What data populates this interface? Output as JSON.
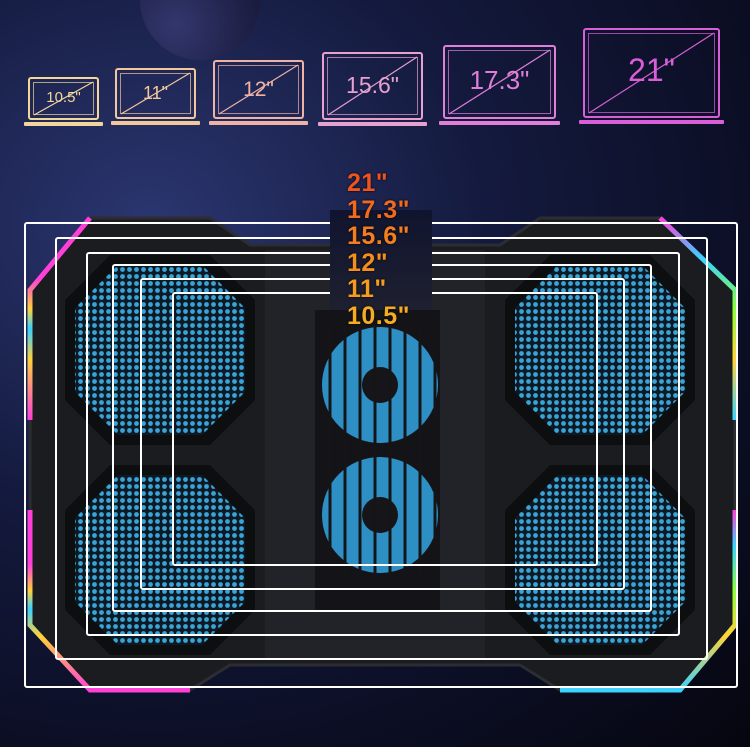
{
  "laptop_sizes": [
    {
      "label": "10.5\"",
      "color": "#f3d79a"
    },
    {
      "label": "11\"",
      "color": "#f2c79a"
    },
    {
      "label": "12\"",
      "color": "#efb2a6"
    },
    {
      "label": "15.6\"",
      "color": "#e8a0cf"
    },
    {
      "label": "17.3\"",
      "color": "#e07ed8"
    },
    {
      "label": "21\"",
      "color": "#d95fd8"
    }
  ],
  "compatible_sizes": [
    {
      "label": "21\"",
      "color": "#f0541c"
    },
    {
      "label": "17.3\"",
      "color": "#f26a1e"
    },
    {
      "label": "15.6\"",
      "color": "#f47e1f"
    },
    {
      "label": "12\"",
      "color": "#f58e1f"
    },
    {
      "label": "11\"",
      "color": "#f59c20"
    },
    {
      "label": "10.5\"",
      "color": "#f5ab22"
    }
  ],
  "fan_color": "#3aa3d8",
  "rgb_colors": [
    "#ff3fd8",
    "#ffd23a",
    "#3ad2ff",
    "#8aff3a"
  ]
}
